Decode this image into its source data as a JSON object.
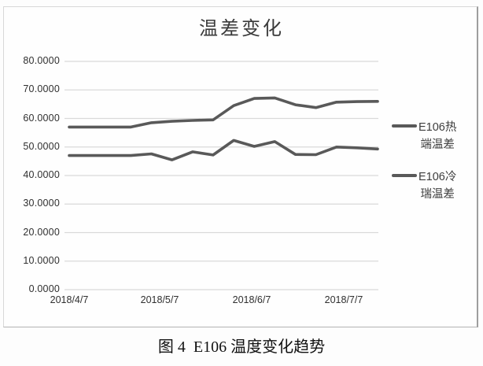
{
  "caption": "图 4  E106 温度变化趋势",
  "chart_data": {
    "type": "line",
    "title": "温差变化",
    "xlabel": "",
    "ylabel": "",
    "ylim": [
      0,
      80
    ],
    "grid": true,
    "legend_position": "right",
    "gridline_color": "#d9d9d9",
    "series_color": "#595959",
    "yticks": [
      "80.0000",
      "70.0000",
      "60.0000",
      "50.0000",
      "40.0000",
      "30.0000",
      "20.0000",
      "10.0000",
      "0.0000"
    ],
    "xticks": [
      "2018/4/7",
      "2018/5/7",
      "2018/6/7",
      "2018/7/7"
    ],
    "x": [
      "2018/4/7",
      "2018/4/14",
      "2018/4/21",
      "2018/4/28",
      "2018/5/5",
      "2018/5/12",
      "2018/5/19",
      "2018/5/26",
      "2018/6/2",
      "2018/6/9",
      "2018/6/16",
      "2018/6/23",
      "2018/6/30",
      "2018/7/7",
      "2018/7/14",
      "2018/7/21"
    ],
    "series": [
      {
        "name": "E106热端温差",
        "legend_lines": [
          "E106热",
          "端温差"
        ],
        "color": "#595959",
        "values": [
          57.0,
          57.0,
          57.0,
          57.0,
          58.5,
          59.0,
          59.3,
          59.5,
          64.5,
          67.0,
          67.2,
          64.8,
          63.8,
          65.7,
          65.9,
          66.0
        ]
      },
      {
        "name": "E106冷瑞温差",
        "legend_lines": [
          "E106冷",
          "瑞温差"
        ],
        "color": "#595959",
        "values": [
          47.0,
          47.0,
          47.0,
          47.0,
          47.6,
          45.5,
          48.3,
          47.2,
          52.3,
          50.2,
          51.9,
          47.4,
          47.3,
          50.0,
          49.7,
          49.3
        ]
      }
    ]
  }
}
